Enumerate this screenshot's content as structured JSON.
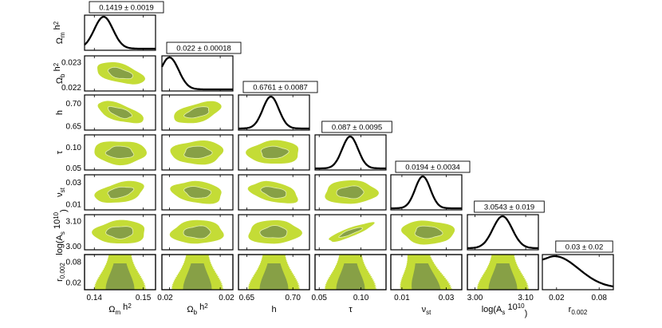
{
  "chart_data": {
    "type": "triangle_corner_plot",
    "colors": {
      "outer_contour": "#c4dc36",
      "inner_contour": "#87a046",
      "line": "#000000"
    },
    "parameters": [
      {
        "id": "omch2",
        "label_main": "Ω",
        "label_sub": "m",
        "label_tail": " h",
        "label_sup": "2",
        "ylabel_main": "Ω",
        "ylabel_sub": "m",
        "ylabel_tail": " h",
        "ylabel_sup": "2",
        "range": [
          0.138,
          0.1525
        ],
        "mean": 0.1419,
        "sigma": 0.0019,
        "summary": "0.1419 ± 0.0019",
        "ticks": [
          "0.14",
          "0.15"
        ],
        "tick_values": [
          0.14,
          0.15
        ]
      },
      {
        "id": "ombh2",
        "label_main": "Ω",
        "label_sub": "b",
        "label_tail": " h",
        "label_sup": "2",
        "ylabel_main": "Ω",
        "ylabel_sub": "b",
        "ylabel_tail": " h",
        "ylabel_sup": "2",
        "range": [
          0.02185,
          0.02325
        ],
        "mean": 0.022,
        "sigma": 0.00018,
        "summary": "0.022 ± 0.00018",
        "ticks": [
          "0.02",
          "0.02"
        ],
        "tick_values": [
          0.022,
          0.023
        ],
        "yticks": [
          "0.023",
          "0.022"
        ],
        "ytick_values": [
          0.023,
          0.022
        ]
      },
      {
        "id": "h",
        "label_main": "h",
        "ylabel_main": "h",
        "range": [
          0.641,
          0.718
        ],
        "mean": 0.6761,
        "sigma": 0.0087,
        "summary": "0.6761 ± 0.0087",
        "ticks": [
          "0.65",
          "0.70"
        ],
        "tick_values": [
          0.65,
          0.7
        ],
        "yticks": [
          "0.70",
          "0.65"
        ],
        "ytick_values": [
          0.7,
          0.65
        ]
      },
      {
        "id": "tau",
        "label_main": "τ",
        "ylabel_main": "τ",
        "range": [
          0.045,
          0.13
        ],
        "mean": 0.087,
        "sigma": 0.0095,
        "summary": "0.087 ± 0.0095",
        "ticks": [
          "0.05",
          "0.10"
        ],
        "tick_values": [
          0.05,
          0.1
        ],
        "yticks": [
          "0.10",
          "0.05"
        ],
        "ytick_values": [
          0.1,
          0.05
        ]
      },
      {
        "id": "nst",
        "label_main": "ν",
        "label_sub": "st",
        "ylabel_main": "ν",
        "ylabel_sub": "st",
        "range": [
          0.005,
          0.037
        ],
        "mean": 0.0194,
        "sigma": 0.0034,
        "summary": "0.0194 ± 0.0034",
        "ticks": [
          "0.01",
          "0.03"
        ],
        "tick_values": [
          0.01,
          0.03
        ],
        "yticks": [
          "0.03",
          "0.01"
        ],
        "ytick_values": [
          0.03,
          0.01
        ]
      },
      {
        "id": "logA",
        "label_main": "log(A",
        "label_sub": "s",
        "label_tail": " 10",
        "label_sup": "10",
        "label_end": ")",
        "ylabel_main": "log(A",
        "ylabel_sub": "s",
        "ylabel_tail": " 10",
        "ylabel_sup": "10",
        "ylabel_end": ")",
        "range": [
          2.985,
          3.125
        ],
        "mean": 3.0543,
        "sigma": 0.019,
        "summary": "3.0543 ± 0.019",
        "ticks": [
          "3.00",
          "3.10"
        ],
        "tick_values": [
          3.0,
          3.1
        ],
        "yticks": [
          "3.10",
          "3.00"
        ],
        "ytick_values": [
          3.1,
          3.0
        ]
      },
      {
        "id": "r",
        "label_main": "r",
        "label_sub": "0.002",
        "ylabel_main": "r",
        "ylabel_sub": "0.002",
        "range": [
          0.0,
          0.1
        ],
        "mean": 0.03,
        "sigma": 0.02,
        "summary": "0.03 ± 0.02",
        "ticks": [
          "0.02",
          "0.08"
        ],
        "tick_values": [
          0.02,
          0.08
        ],
        "yticks": [
          "0.08",
          "0.02"
        ],
        "ytick_values": [
          0.08,
          0.02
        ],
        "posterior_shape": "peak_near_0.017_decaying"
      }
    ],
    "correlations": [
      [
        1,
        -0.55,
        -0.75,
        -0.05,
        0.45,
        0.05,
        0
      ],
      [
        -0.55,
        1,
        0.6,
        0.05,
        -0.25,
        0.05,
        0
      ],
      [
        -0.75,
        0.6,
        1,
        0.05,
        -0.45,
        0.05,
        0
      ],
      [
        -0.05,
        0.05,
        0.05,
        1,
        0.05,
        0.9,
        0
      ],
      [
        0.45,
        -0.25,
        -0.45,
        0.05,
        1,
        -0.05,
        -0.6
      ],
      [
        0.05,
        0.05,
        0.05,
        0.9,
        -0.05,
        1,
        0
      ],
      [
        0,
        0,
        0,
        0,
        -0.6,
        0,
        1
      ]
    ]
  }
}
